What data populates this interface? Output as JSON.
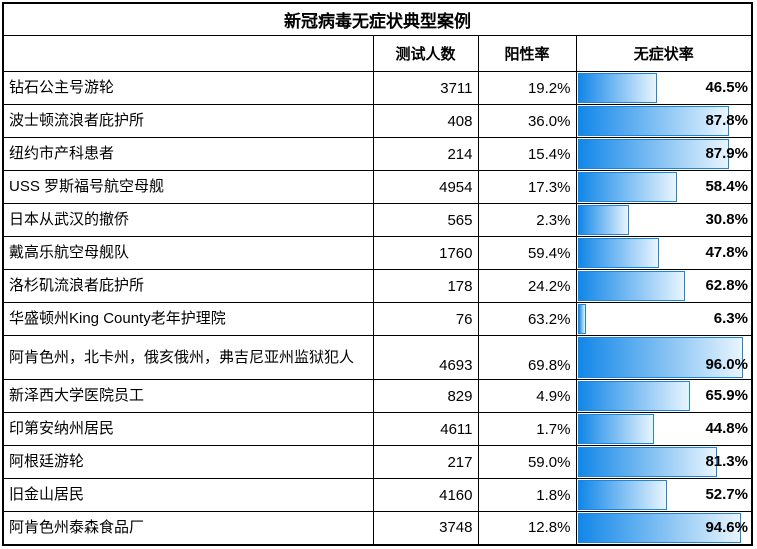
{
  "title": "新冠病毒无症状典型案例",
  "columns": {
    "name": "",
    "tested": "测试人数",
    "positive_rate": "阳性率",
    "asymptomatic_rate": "无症状率"
  },
  "colors": {
    "bar_gradient_start": "#1287E8",
    "bar_gradient_end": "#E8F5FE",
    "bar_border": "#1D86D8",
    "grid_border": "#000000"
  },
  "rows": [
    {
      "name": "钻石公主号游轮",
      "tested": "3711",
      "positive_rate": "19.2%",
      "asymptomatic_rate": "46.5%",
      "asymptomatic_value": 46.5,
      "tall": false
    },
    {
      "name": "波士顿流浪者庇护所",
      "tested": "408",
      "positive_rate": "36.0%",
      "asymptomatic_rate": "87.8%",
      "asymptomatic_value": 87.8,
      "tall": false
    },
    {
      "name": "纽约市产科患者",
      "tested": "214",
      "positive_rate": "15.4%",
      "asymptomatic_rate": "87.9%",
      "asymptomatic_value": 87.9,
      "tall": false
    },
    {
      "name": "USS 罗斯福号航空母舰",
      "tested": "4954",
      "positive_rate": "17.3%",
      "asymptomatic_rate": "58.4%",
      "asymptomatic_value": 58.4,
      "tall": false
    },
    {
      "name": "日本从武汉的撤侨",
      "tested": "565",
      "positive_rate": "2.3%",
      "asymptomatic_rate": "30.8%",
      "asymptomatic_value": 30.8,
      "tall": false
    },
    {
      "name": "戴高乐航空母舰队",
      "tested": "1760",
      "positive_rate": "59.4%",
      "asymptomatic_rate": "47.8%",
      "asymptomatic_value": 47.8,
      "tall": false
    },
    {
      "name": "洛杉矶流浪者庇护所",
      "tested": "178",
      "positive_rate": "24.2%",
      "asymptomatic_rate": "62.8%",
      "asymptomatic_value": 62.8,
      "tall": false
    },
    {
      "name": "华盛顿州King County老年护理院",
      "tested": "76",
      "positive_rate": "63.2%",
      "asymptomatic_rate": "6.3%",
      "asymptomatic_value": 6.3,
      "tall": false
    },
    {
      "name": "阿肯色州，北卡州，俄亥俄州，弗吉尼亚州监狱犯人",
      "tested": "4693",
      "positive_rate": "69.8%",
      "asymptomatic_rate": "96.0%",
      "asymptomatic_value": 96.0,
      "tall": true
    },
    {
      "name": "新泽西大学医院员工",
      "tested": "829",
      "positive_rate": "4.9%",
      "asymptomatic_rate": "65.9%",
      "asymptomatic_value": 65.9,
      "tall": false
    },
    {
      "name": "印第安纳州居民",
      "tested": "4611",
      "positive_rate": "1.7%",
      "asymptomatic_rate": "44.8%",
      "asymptomatic_value": 44.8,
      "tall": false
    },
    {
      "name": "阿根廷游轮",
      "tested": "217",
      "positive_rate": "59.0%",
      "asymptomatic_rate": "81.3%",
      "asymptomatic_value": 81.3,
      "tall": false
    },
    {
      "name": "旧金山居民",
      "tested": "4160",
      "positive_rate": "1.8%",
      "asymptomatic_rate": "52.7%",
      "asymptomatic_value": 52.7,
      "tall": false
    },
    {
      "name": "阿肯色州泰森食品厂",
      "tested": "3748",
      "positive_rate": "12.8%",
      "asymptomatic_rate": "94.6%",
      "asymptomatic_value": 94.6,
      "tall": false
    }
  ],
  "chart_data": {
    "type": "bar",
    "title": "新冠病毒无症状典型案例",
    "categories": [
      "钻石公主号游轮",
      "波士顿流浪者庇护所",
      "纽约市产科患者",
      "USS 罗斯福号航空母舰",
      "日本从武汉的撤侨",
      "戴高乐航空母舰队",
      "洛杉矶流浪者庇护所",
      "华盛顿州King County老年护理院",
      "阿肯色州，北卡州，俄亥俄州，弗吉尼亚州监狱犯人",
      "新泽西大学医院员工",
      "印第安纳州居民",
      "阿根廷游轮",
      "旧金山居民",
      "阿肯色州泰森食品厂"
    ],
    "series": [
      {
        "name": "测试人数",
        "values": [
          3711,
          408,
          214,
          4954,
          565,
          1760,
          178,
          76,
          4693,
          829,
          4611,
          217,
          4160,
          3748
        ]
      },
      {
        "name": "阳性率",
        "unit": "%",
        "values": [
          19.2,
          36.0,
          15.4,
          17.3,
          2.3,
          59.4,
          24.2,
          63.2,
          69.8,
          4.9,
          1.7,
          59.0,
          1.8,
          12.8
        ]
      },
      {
        "name": "无症状率",
        "unit": "%",
        "values": [
          46.5,
          87.8,
          87.9,
          58.4,
          30.8,
          47.8,
          62.8,
          6.3,
          96.0,
          65.9,
          44.8,
          81.3,
          52.7,
          94.6
        ]
      }
    ],
    "bar_axis_range": [
      0,
      100
    ],
    "layout": "table with in-cell horizontal gradient data bars on 无症状率 column, bars scaled 0-100%"
  }
}
